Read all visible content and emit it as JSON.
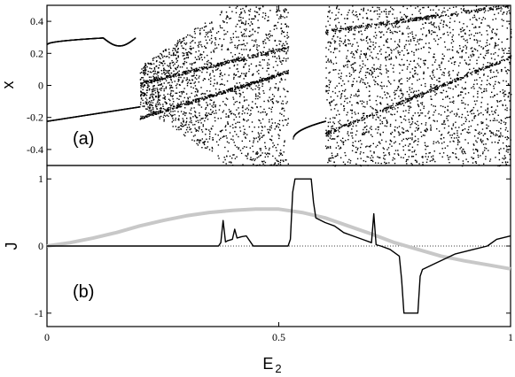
{
  "chart_data": [
    {
      "panel": "(a)",
      "type": "scatter",
      "ylabel": "x",
      "xlim": [
        0,
        1
      ],
      "ylim": [
        -0.5,
        0.5
      ],
      "yticks": [
        "-0.4",
        "-0.2",
        "0",
        "0.2",
        "0.4"
      ],
      "ytick_values": [
        -0.4,
        -0.2,
        0,
        0.2,
        0.4
      ],
      "color": "#000000",
      "description_series": [
        {
          "name": "upper branch",
          "x": [
            0.0,
            0.05,
            0.1,
            0.13,
            0.15,
            0.17,
            0.19
          ],
          "y": [
            0.27,
            0.3,
            0.3,
            0.28,
            0.25,
            0.27,
            0.3
          ]
        },
        {
          "name": "lower branch",
          "x": [
            0.0,
            0.05,
            0.1,
            0.15,
            0.2
          ],
          "y": [
            -0.22,
            -0.21,
            -0.19,
            -0.16,
            -0.13
          ]
        },
        {
          "name": "chaotic band 1",
          "x": [
            0.2,
            0.52
          ],
          "y": [
            -0.5,
            0.5
          ]
        },
        {
          "name": "chaotic band 2",
          "x": [
            0.6,
            1.0
          ],
          "y": [
            -0.5,
            0.5
          ]
        },
        {
          "name": "window lower branch",
          "x": [
            0.53,
            0.55,
            0.58,
            0.6
          ],
          "y": [
            -0.32,
            -0.27,
            -0.24,
            -0.22
          ]
        }
      ]
    },
    {
      "panel": "(b)",
      "type": "line",
      "ylabel": "J",
      "xlabel": "E",
      "xlabel_sub": "2",
      "xlim": [
        0,
        1
      ],
      "ylim": [
        -1.2,
        1.2
      ],
      "yticks": [
        "-1",
        "0",
        "1"
      ],
      "ytick_values": [
        -1,
        0,
        1
      ],
      "xticks": [
        "0",
        "0.5",
        "1"
      ],
      "xtick_values": [
        0,
        0.5,
        1
      ],
      "reference_line_y": 0,
      "series": [
        {
          "color": "#000000",
          "x": [
            0.0,
            0.37,
            0.375,
            0.38,
            0.385,
            0.39,
            0.4,
            0.405,
            0.41,
            0.42,
            0.43,
            0.44,
            0.445,
            0.52,
            0.525,
            0.53,
            0.535,
            0.54,
            0.57,
            0.575,
            0.58,
            0.6,
            0.62,
            0.63,
            0.64,
            0.66,
            0.68,
            0.7,
            0.705,
            0.71,
            0.72,
            0.74,
            0.76,
            0.765,
            0.77,
            0.8,
            0.805,
            0.81,
            0.84,
            0.88,
            0.92,
            0.95,
            0.97,
            1.0
          ],
          "y": [
            0.0,
            0.0,
            0.05,
            0.38,
            0.06,
            0.08,
            0.1,
            0.25,
            0.12,
            0.14,
            0.15,
            0.05,
            0.0,
            0.0,
            0.1,
            0.8,
            1.0,
            1.0,
            1.0,
            0.65,
            0.42,
            0.35,
            0.3,
            0.25,
            0.2,
            0.15,
            0.1,
            0.05,
            0.48,
            0.02,
            0.0,
            -0.05,
            -0.15,
            -0.5,
            -1.0,
            -1.0,
            -0.45,
            -0.35,
            -0.25,
            -0.12,
            -0.05,
            0.0,
            0.1,
            0.15
          ]
        },
        {
          "color": "#c8c8c8",
          "x": [
            0.0,
            0.05,
            0.1,
            0.15,
            0.2,
            0.25,
            0.3,
            0.35,
            0.4,
            0.45,
            0.5,
            0.55,
            0.6,
            0.65,
            0.7,
            0.75,
            0.8,
            0.85,
            0.9,
            0.95,
            1.0
          ],
          "y": [
            0.0,
            0.05,
            0.12,
            0.2,
            0.3,
            0.38,
            0.45,
            0.5,
            0.53,
            0.55,
            0.55,
            0.5,
            0.42,
            0.3,
            0.18,
            0.05,
            -0.05,
            -0.15,
            -0.22,
            -0.28,
            -0.34
          ]
        }
      ]
    }
  ]
}
